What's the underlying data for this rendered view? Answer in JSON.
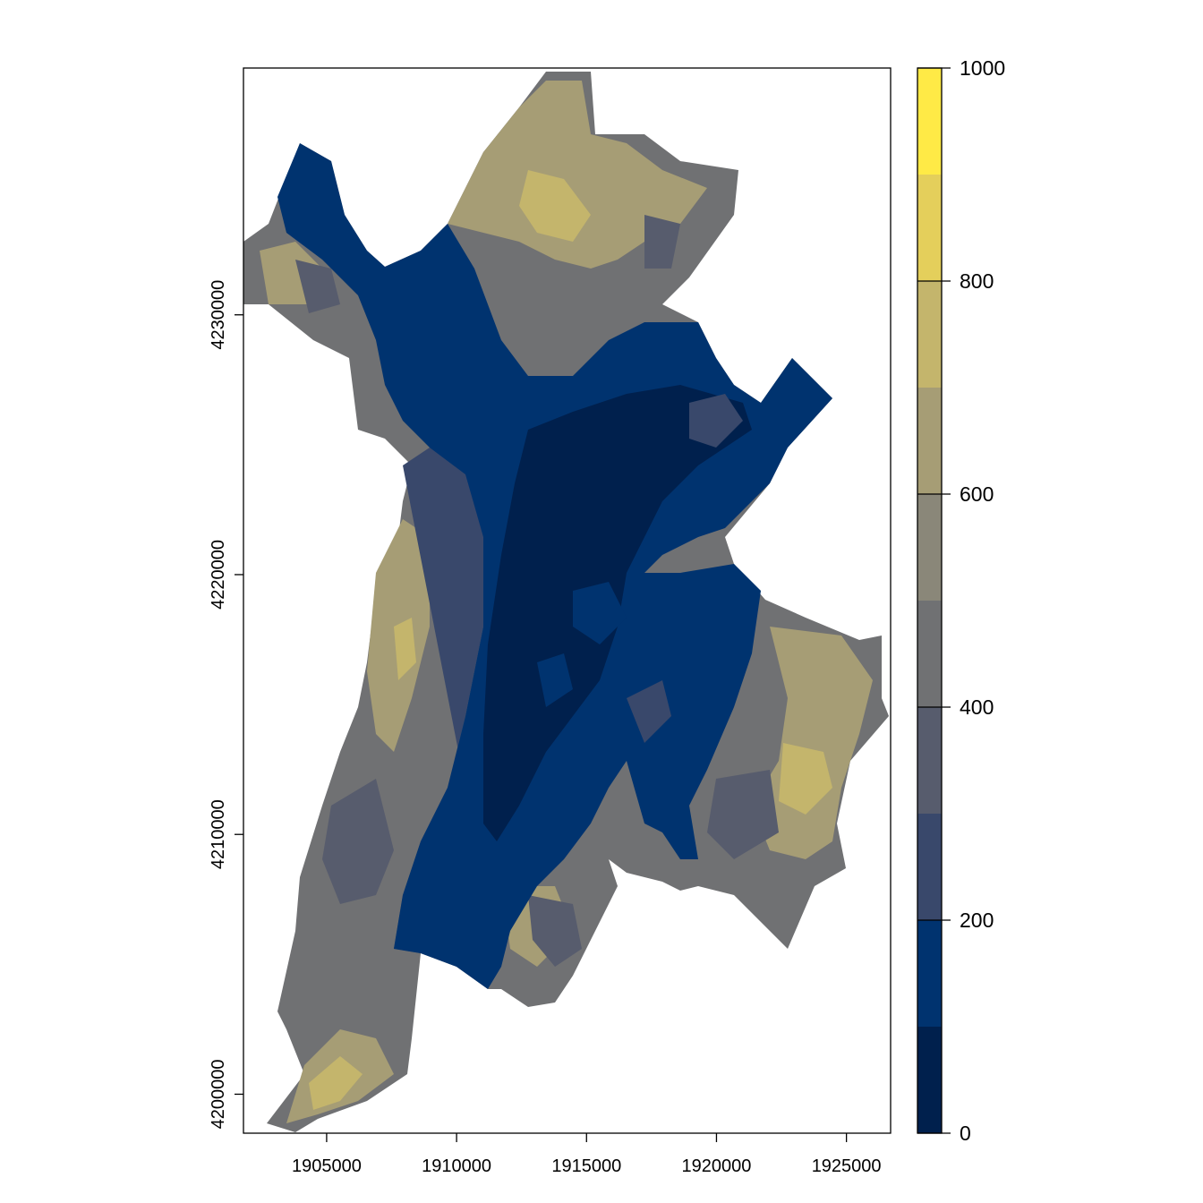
{
  "chart_data": {
    "type": "heatmap",
    "title": "",
    "xlabel": "",
    "ylabel": "",
    "xlim": [
      1901800,
      1926700
    ],
    "ylim": [
      4198500,
      4239500
    ],
    "x_ticks": [
      {
        "value": 1905000,
        "label": "1905000"
      },
      {
        "value": 1910000,
        "label": "1910000"
      },
      {
        "value": 1915000,
        "label": "1915000"
      },
      {
        "value": 1920000,
        "label": "1920000"
      },
      {
        "value": 1925000,
        "label": "1925000"
      }
    ],
    "y_ticks": [
      {
        "value": 4200000,
        "label": "4200000"
      },
      {
        "value": 4210000,
        "label": "4210000"
      },
      {
        "value": 4220000,
        "label": "4220000"
      },
      {
        "value": 4230000,
        "label": "4230000"
      }
    ],
    "legend": {
      "placement": "right",
      "range": [
        0,
        1000
      ],
      "breaks": [
        0,
        100,
        200,
        300,
        400,
        500,
        600,
        700,
        800,
        900,
        1000
      ],
      "colors": [
        "#00204D",
        "#00336F",
        "#39486B",
        "#575C6D",
        "#707173",
        "#8A8779",
        "#A69D75",
        "#C4B56C",
        "#E4CF5B",
        "#FFEA46"
      ],
      "tick_labels": [
        {
          "value": 0,
          "label": "0"
        },
        {
          "value": 200,
          "label": "200"
        },
        {
          "value": 400,
          "label": "400"
        },
        {
          "value": 600,
          "label": "600"
        },
        {
          "value": 800,
          "label": "800"
        },
        {
          "value": 1000,
          "label": "1000"
        }
      ]
    },
    "grid": false
  }
}
